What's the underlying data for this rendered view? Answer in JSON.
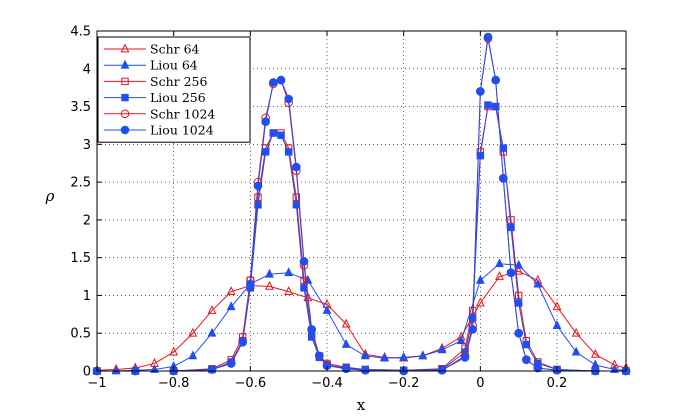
{
  "colors": {
    "schr": "#e8161b",
    "liou": "#1f4ff0"
  },
  "chart_data": {
    "type": "line",
    "title": "",
    "xlabel": "x",
    "ylabel": "ρ",
    "xlim": [
      -1,
      0.38
    ],
    "ylim": [
      0,
      4.5
    ],
    "grid": true,
    "legend_position": "top-left",
    "x_ticks": [
      -1,
      -0.8,
      -0.6,
      -0.4,
      -0.2,
      0,
      0.2
    ],
    "x_tick_labels": [
      "−1",
      "−0.8",
      "−0.6",
      "−0.4",
      "−0.2",
      "0",
      "0.2"
    ],
    "y_ticks": [
      0,
      0.5,
      1,
      1.5,
      2,
      2.5,
      3,
      3.5,
      4,
      4.5
    ],
    "y_tick_labels": [
      "0",
      "0.5",
      "1",
      "1.5",
      "2",
      "2.5",
      "3",
      "3.5",
      "4",
      "4.5"
    ],
    "series": [
      {
        "name": "Schr 64",
        "color": "schr",
        "marker": "triangle-open",
        "x": [
          -1.0,
          -0.95,
          -0.9,
          -0.85,
          -0.8,
          -0.75,
          -0.7,
          -0.65,
          -0.6,
          -0.55,
          -0.5,
          -0.45,
          -0.4,
          -0.35,
          -0.3,
          -0.25,
          -0.2,
          -0.15,
          -0.1,
          -0.05,
          0.0,
          0.05,
          0.1,
          0.15,
          0.2,
          0.25,
          0.3,
          0.35,
          0.38
        ],
        "y": [
          0.01,
          0.02,
          0.04,
          0.1,
          0.25,
          0.5,
          0.8,
          1.05,
          1.13,
          1.12,
          1.05,
          0.97,
          0.88,
          0.62,
          0.22,
          0.18,
          0.17,
          0.2,
          0.3,
          0.45,
          0.9,
          1.25,
          1.32,
          1.2,
          0.85,
          0.5,
          0.22,
          0.08,
          0.04
        ]
      },
      {
        "name": "Liou 64",
        "color": "liou",
        "marker": "triangle-filled",
        "x": [
          -1.0,
          -0.95,
          -0.9,
          -0.85,
          -0.8,
          -0.75,
          -0.7,
          -0.65,
          -0.6,
          -0.55,
          -0.5,
          -0.45,
          -0.4,
          -0.35,
          -0.3,
          -0.25,
          -0.2,
          -0.15,
          -0.1,
          -0.05,
          0.0,
          0.05,
          0.1,
          0.15,
          0.2,
          0.25,
          0.3,
          0.35,
          0.38
        ],
        "y": [
          0.0,
          0.0,
          0.01,
          0.02,
          0.06,
          0.2,
          0.5,
          0.85,
          1.15,
          1.28,
          1.3,
          1.2,
          0.8,
          0.35,
          0.2,
          0.17,
          0.18,
          0.2,
          0.28,
          0.4,
          1.2,
          1.42,
          1.4,
          1.15,
          0.6,
          0.25,
          0.08,
          0.02,
          0.01
        ]
      },
      {
        "name": "Schr 256",
        "color": "schr",
        "marker": "square-open",
        "x": [
          -1.0,
          -0.9,
          -0.8,
          -0.7,
          -0.65,
          -0.62,
          -0.6,
          -0.58,
          -0.56,
          -0.54,
          -0.52,
          -0.5,
          -0.48,
          -0.46,
          -0.44,
          -0.42,
          -0.4,
          -0.35,
          -0.3,
          -0.2,
          -0.1,
          -0.04,
          -0.02,
          0.0,
          0.02,
          0.04,
          0.06,
          0.08,
          0.1,
          0.12,
          0.15,
          0.2,
          0.3,
          0.38
        ],
        "y": [
          0.0,
          0.0,
          0.0,
          0.03,
          0.15,
          0.45,
          1.2,
          2.3,
          2.95,
          3.15,
          3.15,
          2.95,
          2.3,
          1.2,
          0.5,
          0.2,
          0.1,
          0.05,
          0.02,
          0.01,
          0.03,
          0.3,
          0.8,
          2.9,
          3.5,
          3.5,
          2.9,
          2.0,
          1.0,
          0.4,
          0.12,
          0.02,
          0.0,
          0.0
        ]
      },
      {
        "name": "Liou 256",
        "color": "liou",
        "marker": "square-filled",
        "x": [
          -1.0,
          -0.9,
          -0.8,
          -0.7,
          -0.65,
          -0.62,
          -0.6,
          -0.58,
          -0.56,
          -0.54,
          -0.52,
          -0.5,
          -0.48,
          -0.46,
          -0.44,
          -0.42,
          -0.4,
          -0.35,
          -0.3,
          -0.2,
          -0.1,
          -0.04,
          -0.02,
          0.0,
          0.02,
          0.04,
          0.06,
          0.08,
          0.1,
          0.12,
          0.15,
          0.2,
          0.3,
          0.38
        ],
        "y": [
          0.0,
          0.0,
          0.0,
          0.02,
          0.12,
          0.4,
          1.1,
          2.2,
          2.9,
          3.15,
          3.12,
          2.9,
          2.2,
          1.1,
          0.45,
          0.18,
          0.08,
          0.04,
          0.02,
          0.01,
          0.02,
          0.25,
          0.7,
          2.85,
          3.52,
          3.5,
          2.95,
          1.9,
          0.9,
          0.35,
          0.1,
          0.02,
          0.0,
          0.0
        ]
      },
      {
        "name": "Schr 1024",
        "color": "schr",
        "marker": "circle-open",
        "x": [
          -1.0,
          -0.9,
          -0.8,
          -0.7,
          -0.65,
          -0.62,
          -0.6,
          -0.58,
          -0.56,
          -0.54,
          -0.52,
          -0.5,
          -0.48,
          -0.46,
          -0.44,
          -0.42,
          -0.4,
          -0.35,
          -0.3,
          -0.2,
          -0.1,
          -0.04,
          -0.02,
          0.0,
          0.02,
          0.04,
          0.06,
          0.08,
          0.1,
          0.12,
          0.15,
          0.2,
          0.3,
          0.38
        ],
        "y": [
          0.0,
          0.0,
          0.0,
          0.02,
          0.1,
          0.4,
          1.2,
          2.5,
          3.35,
          3.8,
          3.85,
          3.55,
          2.65,
          1.4,
          0.55,
          0.2,
          0.08,
          0.03,
          0.01,
          0.0,
          0.01,
          0.2,
          0.6,
          3.7,
          4.4,
          3.85,
          2.55,
          1.3,
          0.5,
          0.15,
          0.04,
          0.01,
          0.0,
          0.0
        ]
      },
      {
        "name": "Liou 1024",
        "color": "liou",
        "marker": "circle-filled",
        "x": [
          -1.0,
          -0.9,
          -0.8,
          -0.7,
          -0.65,
          -0.62,
          -0.6,
          -0.58,
          -0.56,
          -0.54,
          -0.52,
          -0.5,
          -0.48,
          -0.46,
          -0.44,
          -0.42,
          -0.4,
          -0.35,
          -0.3,
          -0.2,
          -0.1,
          -0.04,
          -0.02,
          0.0,
          0.02,
          0.04,
          0.06,
          0.08,
          0.1,
          0.12,
          0.15,
          0.2,
          0.3,
          0.38
        ],
        "y": [
          0.0,
          0.0,
          0.0,
          0.02,
          0.1,
          0.38,
          1.15,
          2.45,
          3.3,
          3.82,
          3.85,
          3.6,
          2.7,
          1.45,
          0.55,
          0.2,
          0.07,
          0.03,
          0.01,
          0.0,
          0.01,
          0.18,
          0.55,
          3.7,
          4.42,
          3.85,
          2.55,
          1.3,
          0.5,
          0.15,
          0.04,
          0.01,
          0.0,
          0.0
        ]
      }
    ]
  }
}
